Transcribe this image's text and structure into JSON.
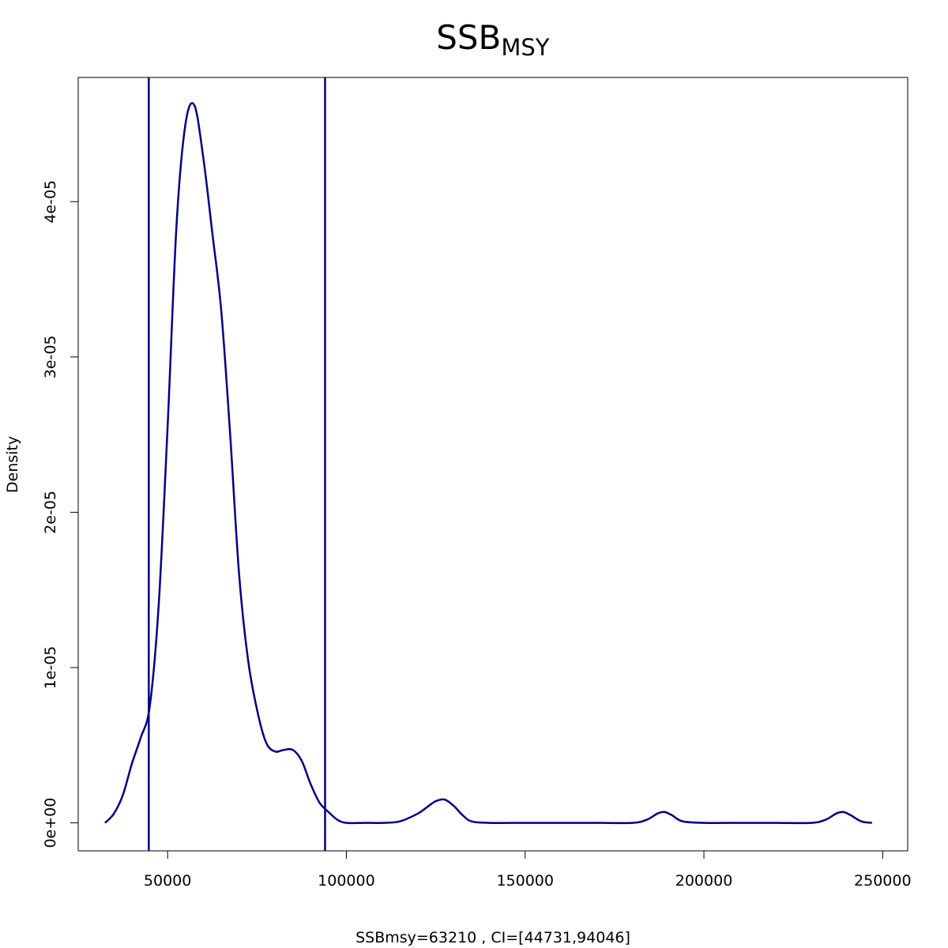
{
  "chart_data": {
    "type": "line",
    "title": "SSB",
    "title_subscript": "MSY",
    "xlabel": "SSBmsy=63210 , CI=[44731,94046]",
    "ylabel": "Density",
    "xlim": [
      25000,
      257000
    ],
    "ylim": [
      -1.8e-06,
      4.8e-05
    ],
    "x_ticks": [
      50000,
      100000,
      150000,
      200000,
      250000
    ],
    "x_tick_labels": [
      "50000",
      "100000",
      "150000",
      "200000",
      "250000"
    ],
    "y_ticks": [
      0,
      1e-05,
      2e-05,
      3e-05,
      4e-05
    ],
    "y_tick_labels": [
      "0e+00",
      "1e-05",
      "2e-05",
      "3e-05",
      "4e-05"
    ],
    "grid": false,
    "line_color": "#00008B",
    "vlines": [
      44731,
      94046
    ],
    "series": [
      {
        "x": [
          32500,
          35000,
          37500,
          40000,
          42500,
          45000,
          47500,
          50000,
          52500,
          55000,
          57500,
          60000,
          62500,
          65000,
          67500,
          70000,
          72500,
          75000,
          77500,
          80000,
          82500,
          85000,
          87500,
          90000,
          92500,
          95000,
          97500,
          100000,
          105000,
          110000,
          115000,
          120000,
          122500,
          125000,
          127500,
          130000,
          132500,
          135000,
          140000,
          150000,
          160000,
          170000,
          180000,
          184000,
          187000,
          189000,
          191000,
          194000,
          200000,
          210000,
          220000,
          230000,
          234000,
          237000,
          239000,
          241000,
          244000,
          247000
        ],
        "y": [
          0.0,
          6e-07,
          1.8e-06,
          3.8e-06,
          5.5e-06,
          7.5e-06,
          1.4e-05,
          2.55e-05,
          3.85e-05,
          4.5e-05,
          4.62e-05,
          4.28e-05,
          3.8e-05,
          3.3e-05,
          2.5e-05,
          1.6e-05,
          1.05e-05,
          7.3e-06,
          5.2e-06,
          4.6e-06,
          4.7e-06,
          4.7e-06,
          4e-06,
          2.5e-06,
          1.3e-06,
          7e-07,
          2e-07,
          0.0,
          0.0,
          0.0,
          1e-07,
          6e-07,
          1e-06,
          1.4e-06,
          1.5e-06,
          1.1e-06,
          5e-07,
          1e-07,
          0.0,
          0.0,
          0.0,
          0.0,
          0.0,
          2e-07,
          6e-07,
          7e-07,
          5e-07,
          1e-07,
          0.0,
          0.0,
          0.0,
          0.0,
          2e-07,
          6e-07,
          7e-07,
          5e-07,
          1e-07,
          0.0
        ]
      }
    ]
  }
}
